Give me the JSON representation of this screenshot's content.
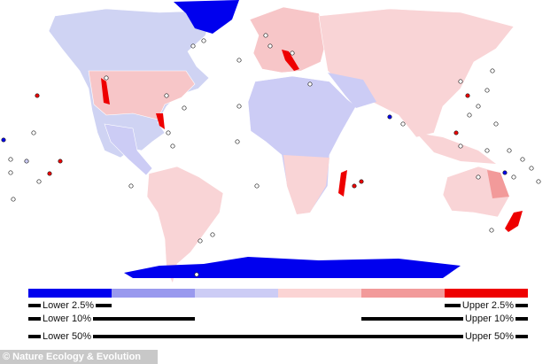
{
  "legend": {
    "colors": [
      "#0000ee",
      "#9999ee",
      "#ccccf5",
      "#fbd4d4",
      "#f29a9a",
      "#ee0000"
    ],
    "rows": [
      {
        "left": "Lower 2.5%",
        "right": "Upper 2.5%"
      },
      {
        "left": "Lower 10%",
        "right": "Upper 10%"
      },
      {
        "left": "Lower 50%",
        "right": "Upper 50%"
      }
    ]
  },
  "credit": "© Nature Ecology & Evolution"
}
